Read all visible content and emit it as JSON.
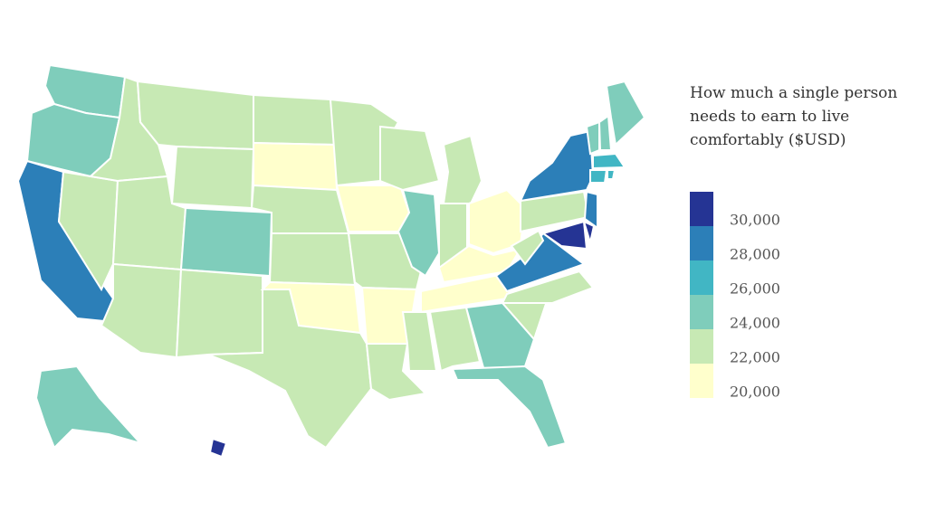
{
  "map": {
    "title_lines": [
      "How much a single person",
      "needs to earn to live",
      "comfortably ($USD)"
    ],
    "legend": {
      "ticks": [
        {
          "value": 20000,
          "label": "20,000"
        },
        {
          "value": 22000,
          "label": "22,000"
        },
        {
          "value": 24000,
          "label": "24,000"
        },
        {
          "value": 26000,
          "label": "26,000"
        },
        {
          "value": 28000,
          "label": "28,000"
        },
        {
          "value": 30000,
          "label": "30,000"
        }
      ],
      "colors": [
        "#ffffcc",
        "#c7e9b4",
        "#7fcdbb",
        "#41b6c4",
        "#2c7fb8",
        "#253494"
      ]
    },
    "regions": [
      25000,
      25000,
      29000,
      23000,
      23000,
      23000,
      23000,
      23000,
      23000,
      25000,
      23000,
      23000,
      21000,
      23000,
      23000,
      21000,
      23000,
      23000,
      21000,
      23000,
      21000,
      23000,
      23000,
      25000,
      23000,
      23000,
      21000,
      21000,
      21000,
      23000,
      23000,
      25000,
      25000,
      23000,
      23000,
      29000,
      23000,
      23000,
      29000,
      29000,
      31000,
      31000,
      25000,
      25000,
      25000,
      27000,
      27000,
      27000,
      25000,
      31000
    ]
  }
}
